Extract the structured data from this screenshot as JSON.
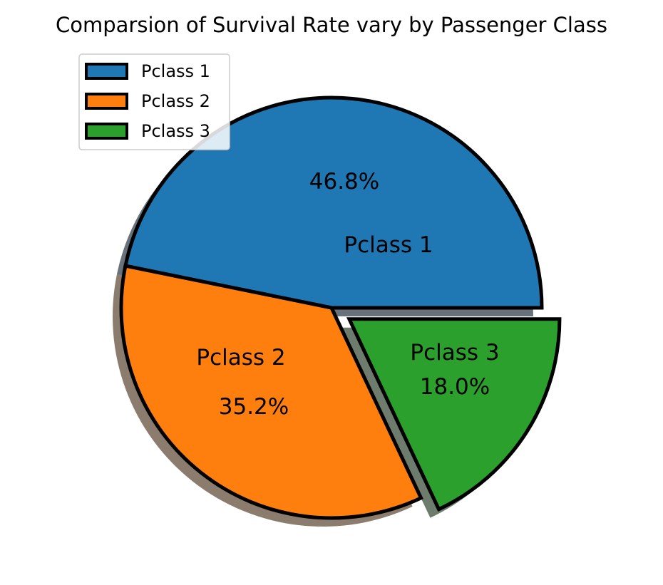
{
  "chart_data": {
    "type": "pie",
    "title": "Comparsion of Survival Rate vary by Passenger Class",
    "categories": [
      "Pclass 1",
      "Pclass 2",
      "Pclass 3"
    ],
    "values": [
      46.8,
      35.2,
      18.0
    ],
    "percent_labels": [
      "46.8%",
      "35.2%",
      "18.0%"
    ],
    "colors": [
      "#1f77b4",
      "#ff7f0e",
      "#2ca02c"
    ],
    "exploded": [
      false,
      false,
      true
    ],
    "shadow": true,
    "legend": {
      "entries": [
        "Pclass 1",
        "Pclass 2",
        "Pclass 3"
      ],
      "placement": "upper-left"
    }
  }
}
